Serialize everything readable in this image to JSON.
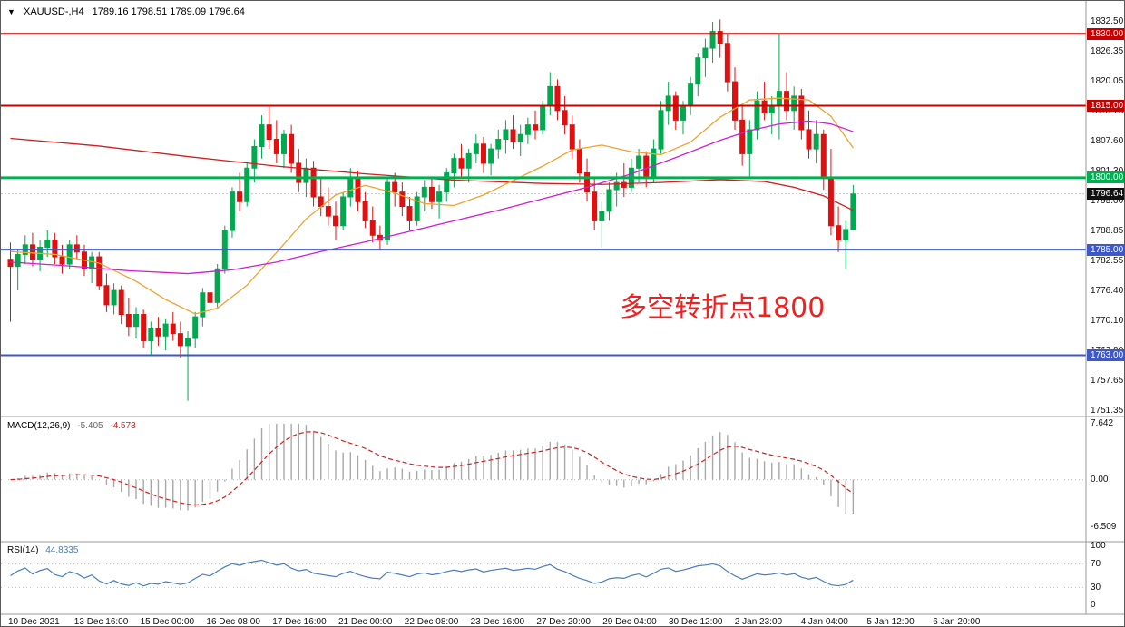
{
  "window": {
    "dropdown": "▼",
    "symbol_period": "XAUUSD-,H4",
    "ohlc": "1789.16 1798.51 1789.09 1796.64"
  },
  "annotation": {
    "text": "多空转折点1800",
    "color": "#f21f1f"
  },
  "colors": {
    "bull": "#00a84f",
    "bear": "#e01010",
    "macd_hist": "#a8a8a8",
    "macd_signal": "#d22020",
    "rsi_line": "#4a7ebb",
    "bid_line": "#c8c8c8"
  },
  "chart_data": {
    "type": "candlestick",
    "symbol": "XAUUSD-",
    "timeframe": "H4",
    "price_axis": {
      "ticks": [
        "1832.50",
        "1826.35",
        "1820.05",
        "1813.75",
        "1807.60",
        "1801.30",
        "1795.00",
        "1788.85",
        "1782.55",
        "1776.40",
        "1770.10",
        "1763.80",
        "1757.65",
        "1751.35"
      ],
      "top_price": 1832.5,
      "bottom_price": 1751.35
    },
    "time_axis": {
      "labels": [
        "10 Dec 2021",
        "13 Dec 16:00",
        "15 Dec 00:00",
        "16 Dec 08:00",
        "17 Dec 16:00",
        "21 Dec 00:00",
        "22 Dec 08:00",
        "23 Dec 16:00",
        "27 Dec 20:00",
        "29 Dec 04:00",
        "30 Dec 12:00",
        "2 Jan 23:00",
        "4 Jan 04:00",
        "5 Jan 12:00",
        "6 Jan 20:00"
      ]
    },
    "candles": [
      [
        1783.0,
        1786.5,
        1770.0,
        1781.5
      ],
      [
        1781.5,
        1785.0,
        1776.5,
        1784.0
      ],
      [
        1784.0,
        1788.0,
        1782.0,
        1786.0
      ],
      [
        1786.0,
        1788.5,
        1781.5,
        1783.0
      ],
      [
        1783.0,
        1787.0,
        1780.5,
        1785.5
      ],
      [
        1785.5,
        1789.0,
        1783.5,
        1787.0
      ],
      [
        1787.0,
        1788.5,
        1782.0,
        1783.5
      ],
      [
        1783.5,
        1786.0,
        1780.0,
        1782.0
      ],
      [
        1782.0,
        1787.0,
        1781.0,
        1786.0
      ],
      [
        1786.0,
        1788.0,
        1783.0,
        1784.5
      ],
      [
        1784.5,
        1786.0,
        1779.5,
        1781.0
      ],
      [
        1781.0,
        1784.5,
        1778.0,
        1783.5
      ],
      [
        1783.5,
        1784.5,
        1776.5,
        1777.5
      ],
      [
        1777.5,
        1780.0,
        1772.0,
        1773.5
      ],
      [
        1773.5,
        1778.0,
        1771.5,
        1776.5
      ],
      [
        1776.5,
        1777.5,
        1769.5,
        1771.5
      ],
      [
        1771.5,
        1775.0,
        1767.0,
        1769.0
      ],
      [
        1769.0,
        1773.0,
        1766.5,
        1771.5
      ],
      [
        1771.5,
        1772.5,
        1764.5,
        1766.0
      ],
      [
        1766.0,
        1770.0,
        1763.0,
        1768.5
      ],
      [
        1768.5,
        1771.0,
        1765.0,
        1767.0
      ],
      [
        1767.0,
        1770.5,
        1764.0,
        1769.5
      ],
      [
        1769.5,
        1772.0,
        1766.0,
        1767.5
      ],
      [
        1767.5,
        1770.0,
        1762.5,
        1765.0
      ],
      [
        1765.0,
        1768.0,
        1753.5,
        1766.5
      ],
      [
        1766.5,
        1772.0,
        1764.5,
        1771.0
      ],
      [
        1771.0,
        1777.0,
        1769.0,
        1776.0
      ],
      [
        1776.0,
        1780.0,
        1772.5,
        1774.0
      ],
      [
        1774.0,
        1782.0,
        1773.0,
        1781.0
      ],
      [
        1781.0,
        1790.0,
        1780.0,
        1789.0
      ],
      [
        1789.0,
        1798.0,
        1787.5,
        1797.0
      ],
      [
        1797.0,
        1801.0,
        1793.0,
        1795.0
      ],
      [
        1795.0,
        1803.0,
        1794.0,
        1802.0
      ],
      [
        1802.0,
        1808.0,
        1799.0,
        1806.5
      ],
      [
        1806.5,
        1813.0,
        1804.0,
        1811.0
      ],
      [
        1811.0,
        1815.0,
        1806.0,
        1808.0
      ],
      [
        1808.0,
        1812.0,
        1803.0,
        1805.0
      ],
      [
        1805.0,
        1810.0,
        1802.0,
        1809.0
      ],
      [
        1809.0,
        1811.0,
        1801.0,
        1803.0
      ],
      [
        1803.0,
        1806.0,
        1797.0,
        1799.0
      ],
      [
        1799.0,
        1804.0,
        1796.0,
        1802.0
      ],
      [
        1802.0,
        1803.5,
        1794.0,
        1796.0
      ],
      [
        1796.0,
        1800.0,
        1792.0,
        1794.0
      ],
      [
        1794.0,
        1798.0,
        1790.0,
        1792.0
      ],
      [
        1792.0,
        1795.0,
        1787.0,
        1790.0
      ],
      [
        1790.0,
        1797.0,
        1789.0,
        1796.0
      ],
      [
        1796.0,
        1802.0,
        1794.0,
        1800.0
      ],
      [
        1800.0,
        1801.5,
        1793.0,
        1795.0
      ],
      [
        1795.0,
        1797.0,
        1789.5,
        1791.0
      ],
      [
        1791.0,
        1794.0,
        1786.5,
        1788.0
      ],
      [
        1788.0,
        1790.0,
        1785.0,
        1787.0
      ],
      [
        1787.0,
        1800.0,
        1786.0,
        1799.0
      ],
      [
        1799.0,
        1801.0,
        1794.0,
        1797.0
      ],
      [
        1797.0,
        1799.0,
        1792.0,
        1794.0
      ],
      [
        1794.0,
        1796.0,
        1789.0,
        1791.0
      ],
      [
        1791.0,
        1797.0,
        1790.0,
        1796.0
      ],
      [
        1796.0,
        1799.5,
        1793.0,
        1798.0
      ],
      [
        1798.0,
        1800.0,
        1793.5,
        1795.0
      ],
      [
        1795.0,
        1798.5,
        1791.5,
        1797.0
      ],
      [
        1797.0,
        1802.0,
        1795.0,
        1801.0
      ],
      [
        1801.0,
        1805.0,
        1798.0,
        1804.0
      ],
      [
        1804.0,
        1807.0,
        1800.0,
        1802.0
      ],
      [
        1802.0,
        1806.0,
        1799.0,
        1805.0
      ],
      [
        1805.0,
        1809.0,
        1803.0,
        1807.0
      ],
      [
        1807.0,
        1808.5,
        1801.0,
        1803.0
      ],
      [
        1803.0,
        1807.0,
        1800.5,
        1806.0
      ],
      [
        1806.0,
        1810.0,
        1804.0,
        1808.0
      ],
      [
        1808.0,
        1812.0,
        1805.0,
        1810.0
      ],
      [
        1810.0,
        1813.0,
        1806.0,
        1807.5
      ],
      [
        1807.5,
        1811.0,
        1804.5,
        1809.0
      ],
      [
        1809.0,
        1812.5,
        1807.0,
        1811.0
      ],
      [
        1811.0,
        1814.0,
        1808.0,
        1810.0
      ],
      [
        1810.0,
        1816.0,
        1809.0,
        1815.0
      ],
      [
        1815.0,
        1822.0,
        1813.0,
        1819.0
      ],
      [
        1819.0,
        1820.5,
        1812.0,
        1814.0
      ],
      [
        1814.0,
        1817.0,
        1809.0,
        1811.0
      ],
      [
        1811.0,
        1813.0,
        1804.0,
        1806.0
      ],
      [
        1806.0,
        1808.0,
        1799.0,
        1801.0
      ],
      [
        1801.0,
        1804.0,
        1795.0,
        1797.0
      ],
      [
        1797.0,
        1800.0,
        1789.0,
        1791.0
      ],
      [
        1791.0,
        1795.0,
        1785.5,
        1793.0
      ],
      [
        1793.0,
        1799.0,
        1791.0,
        1797.5
      ],
      [
        1797.5,
        1801.0,
        1794.0,
        1799.0
      ],
      [
        1799.0,
        1803.0,
        1796.0,
        1798.0
      ],
      [
        1798.0,
        1804.0,
        1797.0,
        1802.0
      ],
      [
        1802.0,
        1806.0,
        1799.0,
        1804.5
      ],
      [
        1804.5,
        1805.5,
        1798.0,
        1800.0
      ],
      [
        1800.0,
        1808.0,
        1799.0,
        1806.0
      ],
      [
        1806.0,
        1816.0,
        1805.0,
        1814.0
      ],
      [
        1814.0,
        1820.0,
        1811.0,
        1817.0
      ],
      [
        1817.0,
        1818.0,
        1810.0,
        1812.0
      ],
      [
        1812.0,
        1816.0,
        1809.0,
        1815.0
      ],
      [
        1815.0,
        1821.0,
        1813.0,
        1819.5
      ],
      [
        1819.5,
        1826.0,
        1817.0,
        1825.0
      ],
      [
        1825.0,
        1829.0,
        1821.0,
        1827.0
      ],
      [
        1827.0,
        1832.5,
        1824.0,
        1830.5
      ],
      [
        1830.5,
        1833.0,
        1825.0,
        1828.0
      ],
      [
        1828.0,
        1830.0,
        1818.0,
        1820.0
      ],
      [
        1820.0,
        1823.0,
        1810.0,
        1812.0
      ],
      [
        1812.0,
        1815.0,
        1802.5,
        1805.0
      ],
      [
        1805.0,
        1812.0,
        1800.0,
        1810.0
      ],
      [
        1810.0,
        1818.0,
        1808.0,
        1816.0
      ],
      [
        1816.0,
        1820.0,
        1812.0,
        1813.5
      ],
      [
        1813.5,
        1817.0,
        1809.0,
        1815.0
      ],
      [
        1815.0,
        1830.0,
        1808.0,
        1818.0
      ],
      [
        1818.0,
        1822.0,
        1812.0,
        1814.0
      ],
      [
        1814.0,
        1819.0,
        1810.0,
        1817.0
      ],
      [
        1817.0,
        1818.5,
        1808.0,
        1810.0
      ],
      [
        1810.0,
        1814.0,
        1804.0,
        1806.0
      ],
      [
        1806.0,
        1812.0,
        1803.0,
        1809.0
      ],
      [
        1809.0,
        1810.0,
        1797.5,
        1800.0
      ],
      [
        1800.0,
        1806.0,
        1788.0,
        1790.0
      ],
      [
        1790.0,
        1794.0,
        1784.5,
        1787.0
      ],
      [
        1787.0,
        1791.0,
        1781.0,
        1789.2
      ],
      [
        1789.2,
        1798.5,
        1789.1,
        1796.6
      ]
    ],
    "moving_averages": [
      {
        "name": "ma-slow",
        "color": "#cf1f1f",
        "points": [
          [
            0,
            1808.2
          ],
          [
            12,
            1806.6
          ],
          [
            24,
            1804.4
          ],
          [
            36,
            1802.4
          ],
          [
            48,
            1800.8
          ],
          [
            60,
            1799.5
          ],
          [
            72,
            1798.8
          ],
          [
            80,
            1798.6
          ],
          [
            88,
            1799.0
          ],
          [
            96,
            1799.6
          ],
          [
            102,
            1799.2
          ],
          [
            106,
            1798.0
          ],
          [
            110,
            1796.2
          ],
          [
            114,
            1793.2
          ]
        ]
      },
      {
        "name": "ma-fast",
        "color": "#efa32f",
        "points": [
          [
            0,
            1784.6
          ],
          [
            6,
            1784.0
          ],
          [
            12,
            1782.2
          ],
          [
            17,
            1778.4
          ],
          [
            21,
            1774.6
          ],
          [
            25,
            1771.6
          ],
          [
            28,
            1772.8
          ],
          [
            32,
            1777.6
          ],
          [
            36,
            1784.4
          ],
          [
            40,
            1791.4
          ],
          [
            44,
            1796.4
          ],
          [
            48,
            1798.4
          ],
          [
            52,
            1796.8
          ],
          [
            56,
            1794.6
          ],
          [
            60,
            1794.2
          ],
          [
            64,
            1796.4
          ],
          [
            68,
            1799.4
          ],
          [
            72,
            1802.4
          ],
          [
            76,
            1805.8
          ],
          [
            80,
            1806.8
          ],
          [
            84,
            1805.4
          ],
          [
            88,
            1804.8
          ],
          [
            92,
            1807.4
          ],
          [
            96,
            1812.6
          ],
          [
            100,
            1816.2
          ],
          [
            104,
            1816.6
          ],
          [
            108,
            1816.2
          ],
          [
            111,
            1812.8
          ],
          [
            114,
            1806.2
          ]
        ]
      },
      {
        "name": "ma-medium",
        "color": "#cf1fcf",
        "points": [
          [
            0,
            1782.4
          ],
          [
            8,
            1781.6
          ],
          [
            16,
            1780.6
          ],
          [
            24,
            1780.0
          ],
          [
            30,
            1780.8
          ],
          [
            36,
            1782.4
          ],
          [
            42,
            1784.6
          ],
          [
            48,
            1786.6
          ],
          [
            54,
            1788.8
          ],
          [
            60,
            1791.0
          ],
          [
            66,
            1793.2
          ],
          [
            72,
            1795.6
          ],
          [
            78,
            1798.0
          ],
          [
            84,
            1800.8
          ],
          [
            90,
            1804.2
          ],
          [
            96,
            1807.8
          ],
          [
            100,
            1809.8
          ],
          [
            104,
            1811.2
          ],
          [
            108,
            1811.8
          ],
          [
            111,
            1811.2
          ],
          [
            114,
            1809.6
          ]
        ]
      }
    ],
    "levels": [
      {
        "label": "1830.00",
        "value": 1830.0,
        "color": "#c80000",
        "width": 2
      },
      {
        "label": "1815.00",
        "value": 1815.0,
        "color": "#c80000",
        "width": 2
      },
      {
        "label": "1800.00",
        "value": 1800.0,
        "color": "#00b050",
        "width": 3
      },
      {
        "label": "1785.00",
        "value": 1785.0,
        "color": "#3f58c8",
        "width": 2
      },
      {
        "label": "1763.00",
        "value": 1763.0,
        "color": "#3f58c8",
        "width": 2
      }
    ],
    "current_price": {
      "label": "1796.64",
      "value": 1796.64
    },
    "macd": {
      "label": "MACD(12,26,9)",
      "main_value": "-5.405",
      "signal_value": "-4.573",
      "axis": {
        "max": 7.642,
        "min": -6.509,
        "labels": [
          "7.642",
          "0.00",
          "-6.509"
        ]
      }
    },
    "rsi": {
      "label": "RSI(14)",
      "value": "44.8335",
      "axis_labels": [
        "100",
        "70",
        "30",
        "0"
      ],
      "levels": [
        70,
        30
      ]
    }
  }
}
